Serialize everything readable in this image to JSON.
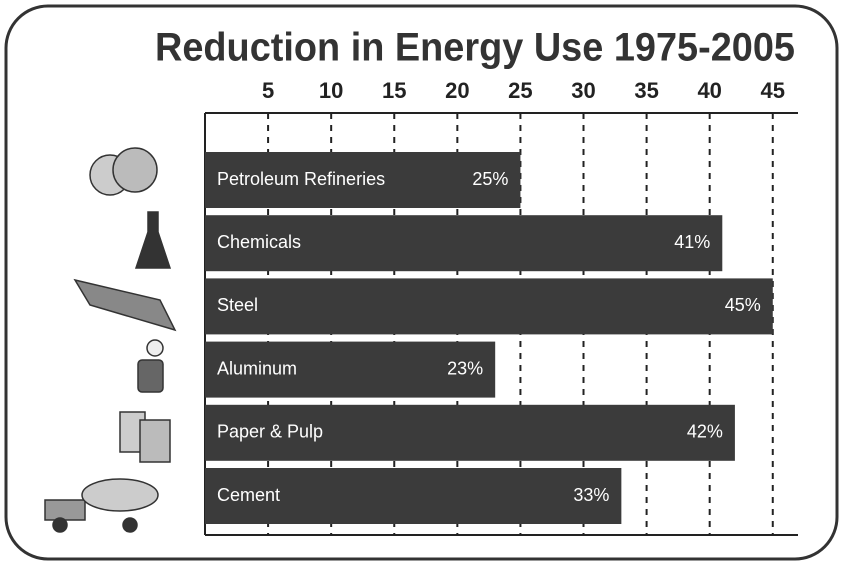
{
  "chart_data": {
    "type": "hbar",
    "title": "Reduction in Energy Use 1975-2005",
    "categories": [
      "Petroleum Refineries",
      "Chemicals",
      "Steel",
      "Aluminum",
      "Paper & Pulp",
      "Cement"
    ],
    "values": [
      25,
      41,
      45,
      23,
      42,
      33
    ],
    "value_labels": [
      "25%",
      "41%",
      "45%",
      "23%",
      "42%",
      "33%"
    ],
    "color": "#3b3b3b",
    "xlim": [
      0,
      47
    ],
    "xticks": [
      5,
      10,
      15,
      20,
      25,
      30,
      35,
      40,
      45
    ],
    "grid": true
  }
}
